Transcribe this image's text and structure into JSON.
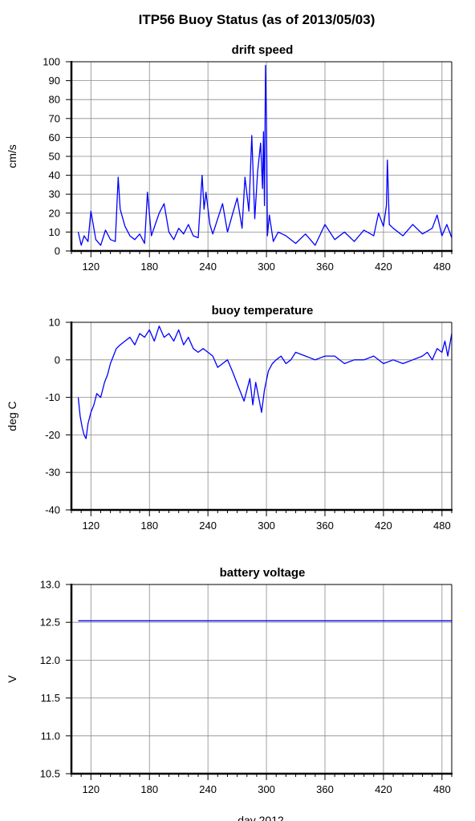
{
  "figure": {
    "title": "ITP56 Buoy Status (as of 2013/05/03)",
    "xlabel": "day 2012"
  },
  "colors": {
    "series": "#0000ff",
    "grid": "#8a8a8a",
    "axes": "#000000"
  },
  "chart_data": [
    {
      "type": "line",
      "title": "drift speed",
      "ylabel": "cm/s",
      "xlim": [
        100,
        490
      ],
      "ylim": [
        0,
        100
      ],
      "xticks": [
        120,
        180,
        240,
        300,
        360,
        420,
        480
      ],
      "yticks": [
        0,
        10,
        20,
        30,
        40,
        50,
        60,
        70,
        80,
        90,
        100
      ],
      "grid": true,
      "series": [
        {
          "x": [
            107,
            110,
            113,
            117,
            120,
            125,
            130,
            135,
            140,
            145,
            148,
            150,
            155,
            160,
            165,
            170,
            175,
            178,
            182,
            186,
            190,
            195,
            200,
            205,
            210,
            215,
            220,
            225,
            230,
            234,
            236,
            238,
            242,
            245,
            250,
            255,
            260,
            265,
            270,
            275,
            278,
            282,
            285,
            288,
            291,
            294,
            296,
            297,
            298,
            299,
            300,
            301,
            303,
            307,
            312,
            320,
            330,
            340,
            350,
            360,
            370,
            380,
            390,
            400,
            410,
            415,
            420,
            423,
            424,
            426,
            430,
            440,
            450,
            460,
            470,
            475,
            480,
            485,
            490
          ],
          "y": [
            10,
            3,
            8,
            5,
            21,
            6,
            3,
            11,
            6,
            5,
            39,
            22,
            13,
            8,
            6,
            9,
            4,
            31,
            8,
            14,
            20,
            25,
            10,
            6,
            12,
            9,
            14,
            8,
            7,
            40,
            22,
            31,
            14,
            9,
            17,
            25,
            10,
            19,
            28,
            12,
            39,
            21,
            61,
            17,
            42,
            57,
            33,
            63,
            24,
            98,
            70,
            8,
            19,
            5,
            10,
            8,
            4,
            9,
            3,
            14,
            6,
            10,
            5,
            11,
            8,
            20,
            13,
            24,
            48,
            14,
            12,
            8,
            14,
            9,
            12,
            19,
            8,
            14,
            7
          ]
        }
      ]
    },
    {
      "type": "line",
      "title": "buoy temperature",
      "ylabel": "deg C",
      "xlim": [
        100,
        490
      ],
      "ylim": [
        -40,
        10
      ],
      "xticks": [
        120,
        180,
        240,
        300,
        360,
        420,
        480
      ],
      "yticks": [
        -40,
        -30,
        -20,
        -10,
        0,
        10
      ],
      "grid": true,
      "series": [
        {
          "x": [
            107,
            109,
            111,
            113,
            115,
            117,
            120,
            123,
            126,
            130,
            134,
            137,
            140,
            143,
            146,
            150,
            155,
            160,
            165,
            170,
            175,
            180,
            185,
            190,
            195,
            200,
            205,
            210,
            215,
            220,
            225,
            230,
            235,
            240,
            245,
            250,
            255,
            260,
            265,
            268,
            271,
            274,
            277,
            280,
            283,
            286,
            289,
            292,
            295,
            298,
            302,
            306,
            310,
            315,
            320,
            325,
            330,
            340,
            350,
            360,
            370,
            380,
            390,
            400,
            410,
            420,
            430,
            440,
            450,
            460,
            465,
            470,
            475,
            480,
            483,
            486,
            490
          ],
          "y": [
            -10,
            -15,
            -18,
            -20,
            -21,
            -17,
            -14,
            -12,
            -9,
            -10,
            -6,
            -4,
            -1,
            1,
            3,
            4,
            5,
            6,
            4,
            7,
            6,
            8,
            5,
            9,
            6,
            7,
            5,
            8,
            4,
            6,
            3,
            2,
            3,
            2,
            1,
            -2,
            -1,
            0,
            -3,
            -5,
            -7,
            -9,
            -11,
            -8,
            -5,
            -12,
            -6,
            -10,
            -14,
            -8,
            -3,
            -1,
            0,
            1,
            -1,
            0,
            2,
            1,
            0,
            1,
            1,
            -1,
            0,
            0,
            1,
            -1,
            0,
            -1,
            0,
            1,
            2,
            0,
            3,
            2,
            5,
            1,
            7
          ]
        }
      ]
    },
    {
      "type": "line",
      "title": "battery voltage",
      "ylabel": "V",
      "xlim": [
        100,
        490
      ],
      "ylim": [
        10.5,
        13.0
      ],
      "xticks": [
        120,
        180,
        240,
        300,
        360,
        420,
        480
      ],
      "yticks": [
        10.5,
        11.0,
        11.5,
        12.0,
        12.5,
        13.0
      ],
      "grid": true,
      "series": [
        {
          "x": [
            107,
            490
          ],
          "y": [
            12.52,
            12.52
          ]
        }
      ]
    }
  ]
}
